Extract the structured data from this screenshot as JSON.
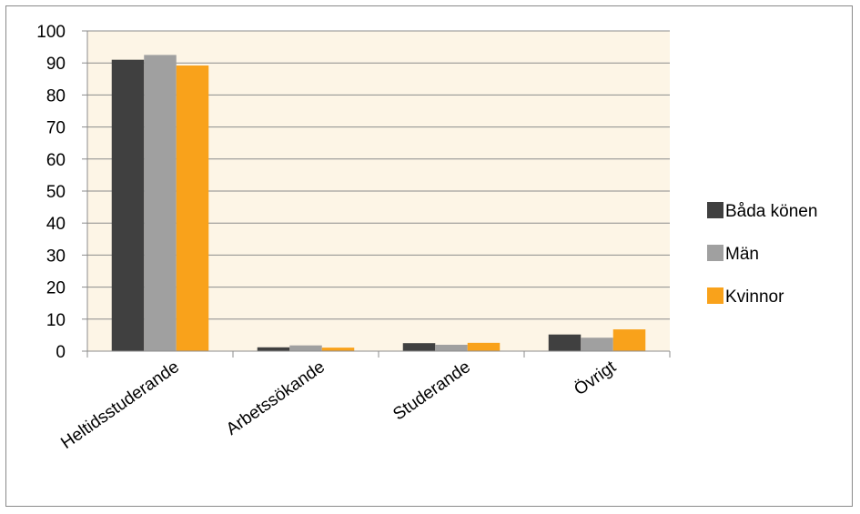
{
  "chart_data": {
    "type": "bar",
    "title": "",
    "xlabel": "",
    "ylabel": "",
    "categories": [
      "Heltidsstuderande",
      "Arbetssökande",
      "Studerande",
      "Övrigt"
    ],
    "series": [
      {
        "name": "Båda könen",
        "color": "#404040",
        "values": [
          91,
          1.2,
          2.5,
          5.2
        ]
      },
      {
        "name": "Män",
        "color": "#a0a0a0",
        "values": [
          92.5,
          1.8,
          2.0,
          4.2
        ]
      },
      {
        "name": "Kvinnor",
        "color": "#f9a21b",
        "values": [
          89.2,
          1.1,
          2.6,
          6.8
        ]
      }
    ],
    "ylim": [
      0,
      100
    ],
    "yticks": [
      0,
      10,
      20,
      30,
      40,
      50,
      60,
      70,
      80,
      90,
      100
    ],
    "grid": true,
    "plot_background": "#fdf5e6",
    "legend_position": "right"
  }
}
